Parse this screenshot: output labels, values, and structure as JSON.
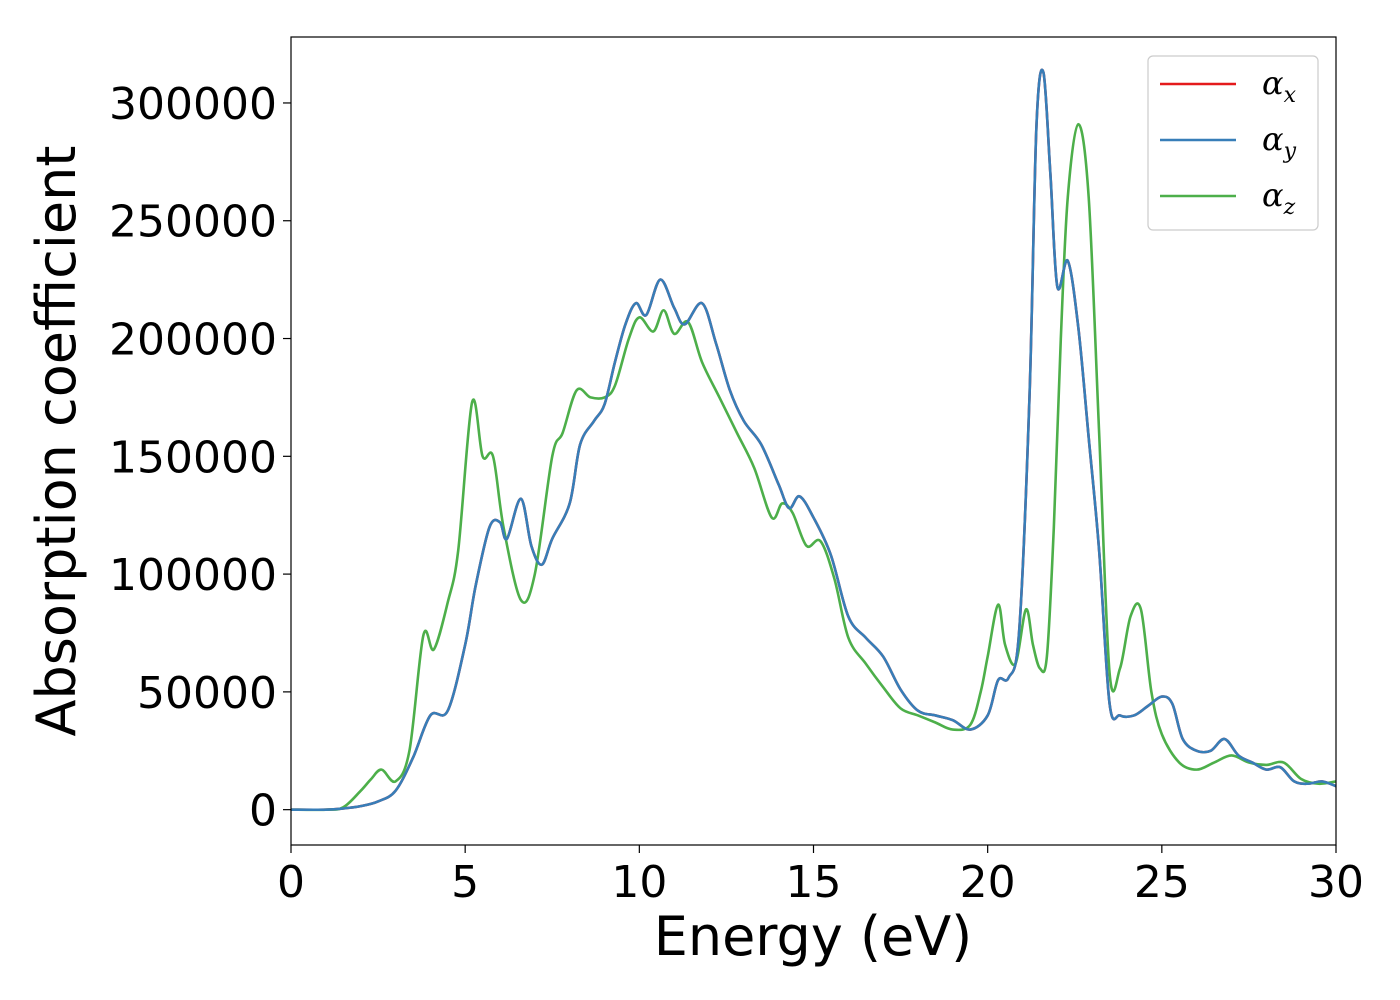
{
  "chart_data": {
    "type": "line",
    "title": "",
    "xlabel": "Energy (eV)",
    "ylabel": "Absorption coefficient",
    "xlim": [
      0,
      30
    ],
    "ylim": [
      -15000,
      328000
    ],
    "xticks": [
      0,
      5,
      10,
      15,
      20,
      25,
      30
    ],
    "yticks": [
      0,
      50000,
      100000,
      150000,
      200000,
      250000,
      300000
    ],
    "grid": false,
    "legend_position": "top-right",
    "series": [
      {
        "name": "α",
        "sub": "x",
        "color": "#e41a1c",
        "x": [
          0,
          1,
          1.5,
          2,
          2.5,
          3,
          3.5,
          4,
          4.5,
          5,
          5.3,
          5.7,
          6,
          6.2,
          6.6,
          6.9,
          7.2,
          7.5,
          8,
          8.3,
          8.7,
          9,
          9.3,
          9.6,
          9.9,
          10.2,
          10.6,
          11,
          11.3,
          11.8,
          12.2,
          12.6,
          13,
          13.5,
          14,
          14.3,
          14.6,
          15,
          15.5,
          16,
          16.5,
          17,
          17.5,
          18,
          18.5,
          19,
          19.5,
          20,
          20.3,
          20.6,
          20.9,
          21.2,
          21.4,
          21.6,
          21.8,
          22,
          22.3,
          22.6,
          22.9,
          23.2,
          23.5,
          23.8,
          24.2,
          24.6,
          25,
          25.3,
          25.6,
          26,
          26.4,
          26.8,
          27.2,
          27.6,
          28,
          28.4,
          28.8,
          29.2,
          29.6,
          30
        ],
        "values": [
          0,
          0,
          500,
          1500,
          3500,
          8000,
          22000,
          40000,
          42000,
          70000,
          95000,
          120000,
          122000,
          115000,
          132000,
          112000,
          104000,
          115000,
          130000,
          155000,
          165000,
          172000,
          190000,
          206000,
          215000,
          210000,
          225000,
          213000,
          206000,
          215000,
          198000,
          178000,
          165000,
          155000,
          138000,
          128000,
          133000,
          124000,
          108000,
          82000,
          73000,
          65000,
          51000,
          42000,
          40000,
          38000,
          34000,
          40000,
          55000,
          56000,
          75000,
          175000,
          290000,
          313000,
          270000,
          222000,
          233000,
          205000,
          158000,
          110000,
          45000,
          40000,
          40000,
          44000,
          48000,
          45000,
          30000,
          25000,
          25000,
          30000,
          23000,
          20000,
          17000,
          18000,
          12000,
          11000,
          12000,
          10000
        ]
      },
      {
        "name": "α",
        "sub": "y",
        "color": "#377eb8",
        "x": [
          0,
          1,
          1.5,
          2,
          2.5,
          3,
          3.5,
          4,
          4.5,
          5,
          5.3,
          5.7,
          6,
          6.2,
          6.6,
          6.9,
          7.2,
          7.5,
          8,
          8.3,
          8.7,
          9,
          9.3,
          9.6,
          9.9,
          10.2,
          10.6,
          11,
          11.3,
          11.8,
          12.2,
          12.6,
          13,
          13.5,
          14,
          14.3,
          14.6,
          15,
          15.5,
          16,
          16.5,
          17,
          17.5,
          18,
          18.5,
          19,
          19.5,
          20,
          20.3,
          20.6,
          20.9,
          21.2,
          21.4,
          21.6,
          21.8,
          22,
          22.3,
          22.6,
          22.9,
          23.2,
          23.5,
          23.8,
          24.2,
          24.6,
          25,
          25.3,
          25.6,
          26,
          26.4,
          26.8,
          27.2,
          27.6,
          28,
          28.4,
          28.8,
          29.2,
          29.6,
          30
        ],
        "values": [
          0,
          0,
          500,
          1500,
          3500,
          8000,
          22000,
          40000,
          42000,
          70000,
          95000,
          120000,
          122000,
          115000,
          132000,
          112000,
          104000,
          115000,
          130000,
          155000,
          165000,
          172000,
          190000,
          206000,
          215000,
          210000,
          225000,
          213000,
          206000,
          215000,
          198000,
          178000,
          165000,
          155000,
          138000,
          128000,
          133000,
          124000,
          108000,
          82000,
          73000,
          65000,
          51000,
          42000,
          40000,
          38000,
          34000,
          40000,
          55000,
          56000,
          75000,
          175000,
          290000,
          313000,
          270000,
          222000,
          233000,
          205000,
          158000,
          110000,
          45000,
          40000,
          40000,
          44000,
          48000,
          45000,
          30000,
          25000,
          25000,
          30000,
          23000,
          20000,
          17000,
          18000,
          12000,
          11000,
          12000,
          10000
        ]
      },
      {
        "name": "α",
        "sub": "z",
        "color": "#4daf4a",
        "x": [
          0,
          1,
          1.5,
          2,
          2.3,
          2.6,
          3,
          3.4,
          3.8,
          4.1,
          4.5,
          4.8,
          5.2,
          5.5,
          5.8,
          6.1,
          6.6,
          7,
          7.5,
          7.8,
          8.2,
          8.6,
          9,
          9.3,
          9.7,
          10,
          10.4,
          10.7,
          11,
          11.4,
          11.8,
          12.3,
          12.8,
          13.3,
          13.8,
          14.1,
          14.4,
          14.8,
          15.2,
          15.6,
          16,
          16.5,
          17,
          17.5,
          18,
          18.5,
          19,
          19.5,
          19.8,
          20,
          20.3,
          20.5,
          20.8,
          21.1,
          21.3,
          21.5,
          21.7,
          21.9,
          22.1,
          22.3,
          22.6,
          22.9,
          23.2,
          23.5,
          23.8,
          24.1,
          24.4,
          24.7,
          25,
          25.5,
          26,
          26.5,
          27,
          27.5,
          28,
          28.5,
          29,
          29.5,
          30
        ],
        "values": [
          0,
          0,
          1000,
          8000,
          13000,
          17000,
          12000,
          25000,
          74000,
          68000,
          88000,
          110000,
          173000,
          150000,
          150000,
          120000,
          89000,
          100000,
          150000,
          160000,
          178000,
          175000,
          175000,
          180000,
          200000,
          209000,
          203000,
          212000,
          202000,
          207000,
          190000,
          175000,
          160000,
          145000,
          124000,
          130000,
          126000,
          112000,
          114000,
          98000,
          73000,
          62000,
          52000,
          43000,
          40000,
          37000,
          34000,
          36000,
          50000,
          65000,
          87000,
          70000,
          62000,
          85000,
          70000,
          60000,
          65000,
          120000,
          200000,
          260000,
          291000,
          260000,
          160000,
          58000,
          60000,
          82000,
          85000,
          50000,
          32000,
          20000,
          17000,
          20000,
          23000,
          20000,
          19000,
          20000,
          13000,
          11000,
          12000
        ]
      }
    ]
  }
}
